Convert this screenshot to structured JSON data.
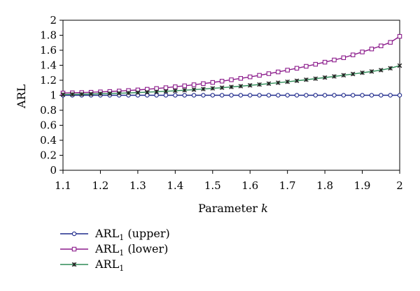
{
  "chart_data": {
    "type": "line",
    "xlabel": "Parameter",
    "xlabel_var": "k",
    "ylabel": "ARL",
    "xlim": [
      1.1,
      2.0
    ],
    "ylim": [
      0,
      2
    ],
    "x_ticks": [
      "1.1",
      "1.2",
      "1.3",
      "1.4",
      "1.5",
      "1.6",
      "1.7",
      "1.8",
      "1.9",
      "2"
    ],
    "y_ticks": [
      "0",
      "0.2",
      "0.4",
      "0.6",
      "0.8",
      "1",
      "1.2",
      "1.4",
      "1.6",
      "1.8",
      "2"
    ],
    "grid": false,
    "legend_position": "bottom-left",
    "x": [
      1.1,
      1.125,
      1.15,
      1.175,
      1.2,
      1.225,
      1.25,
      1.275,
      1.3,
      1.325,
      1.35,
      1.375,
      1.4,
      1.425,
      1.45,
      1.475,
      1.5,
      1.525,
      1.55,
      1.575,
      1.6,
      1.625,
      1.65,
      1.675,
      1.7,
      1.725,
      1.75,
      1.775,
      1.8,
      1.825,
      1.85,
      1.875,
      1.9,
      1.925,
      1.95,
      1.975,
      2.0
    ],
    "series": [
      {
        "name": "ARL",
        "name_subscript": "1",
        "name_suffix": " (upper)",
        "marker": "circle",
        "color": "#1f2a8c",
        "values": [
          1.0,
          1.0,
          1.0,
          1.0,
          1.0,
          1.0,
          1.0,
          1.0,
          1.0,
          1.0,
          1.0,
          1.0,
          1.0,
          1.0,
          1.0,
          1.0,
          1.0,
          1.0,
          1.0,
          1.0,
          1.0,
          1.0,
          1.0,
          1.0,
          1.0,
          1.0,
          1.0,
          1.0,
          1.0,
          1.0,
          1.0,
          1.0,
          1.0,
          1.0,
          1.0,
          1.0,
          1.0
        ]
      },
      {
        "name": "ARL",
        "name_subscript": "1",
        "name_suffix": " (lower)",
        "marker": "square",
        "color": "#8b1a8b",
        "values": [
          1.03,
          1.033,
          1.036,
          1.04,
          1.045,
          1.05,
          1.056,
          1.063,
          1.071,
          1.08,
          1.09,
          1.101,
          1.113,
          1.126,
          1.14,
          1.155,
          1.171,
          1.188,
          1.206,
          1.225,
          1.245,
          1.266,
          1.288,
          1.311,
          1.335,
          1.36,
          1.386,
          1.413,
          1.441,
          1.47,
          1.5,
          1.538,
          1.577,
          1.617,
          1.658,
          1.705,
          1.785
        ]
      },
      {
        "name": "ARL",
        "name_subscript": "1",
        "name_suffix": "",
        "marker": "star",
        "color": "#2e8b57",
        "values": [
          1.01,
          1.012,
          1.014,
          1.017,
          1.02,
          1.023,
          1.027,
          1.031,
          1.036,
          1.041,
          1.047,
          1.053,
          1.06,
          1.067,
          1.075,
          1.083,
          1.092,
          1.101,
          1.111,
          1.121,
          1.132,
          1.143,
          1.155,
          1.167,
          1.18,
          1.193,
          1.207,
          1.221,
          1.236,
          1.251,
          1.267,
          1.283,
          1.3,
          1.317,
          1.335,
          1.36,
          1.395
        ]
      }
    ]
  }
}
